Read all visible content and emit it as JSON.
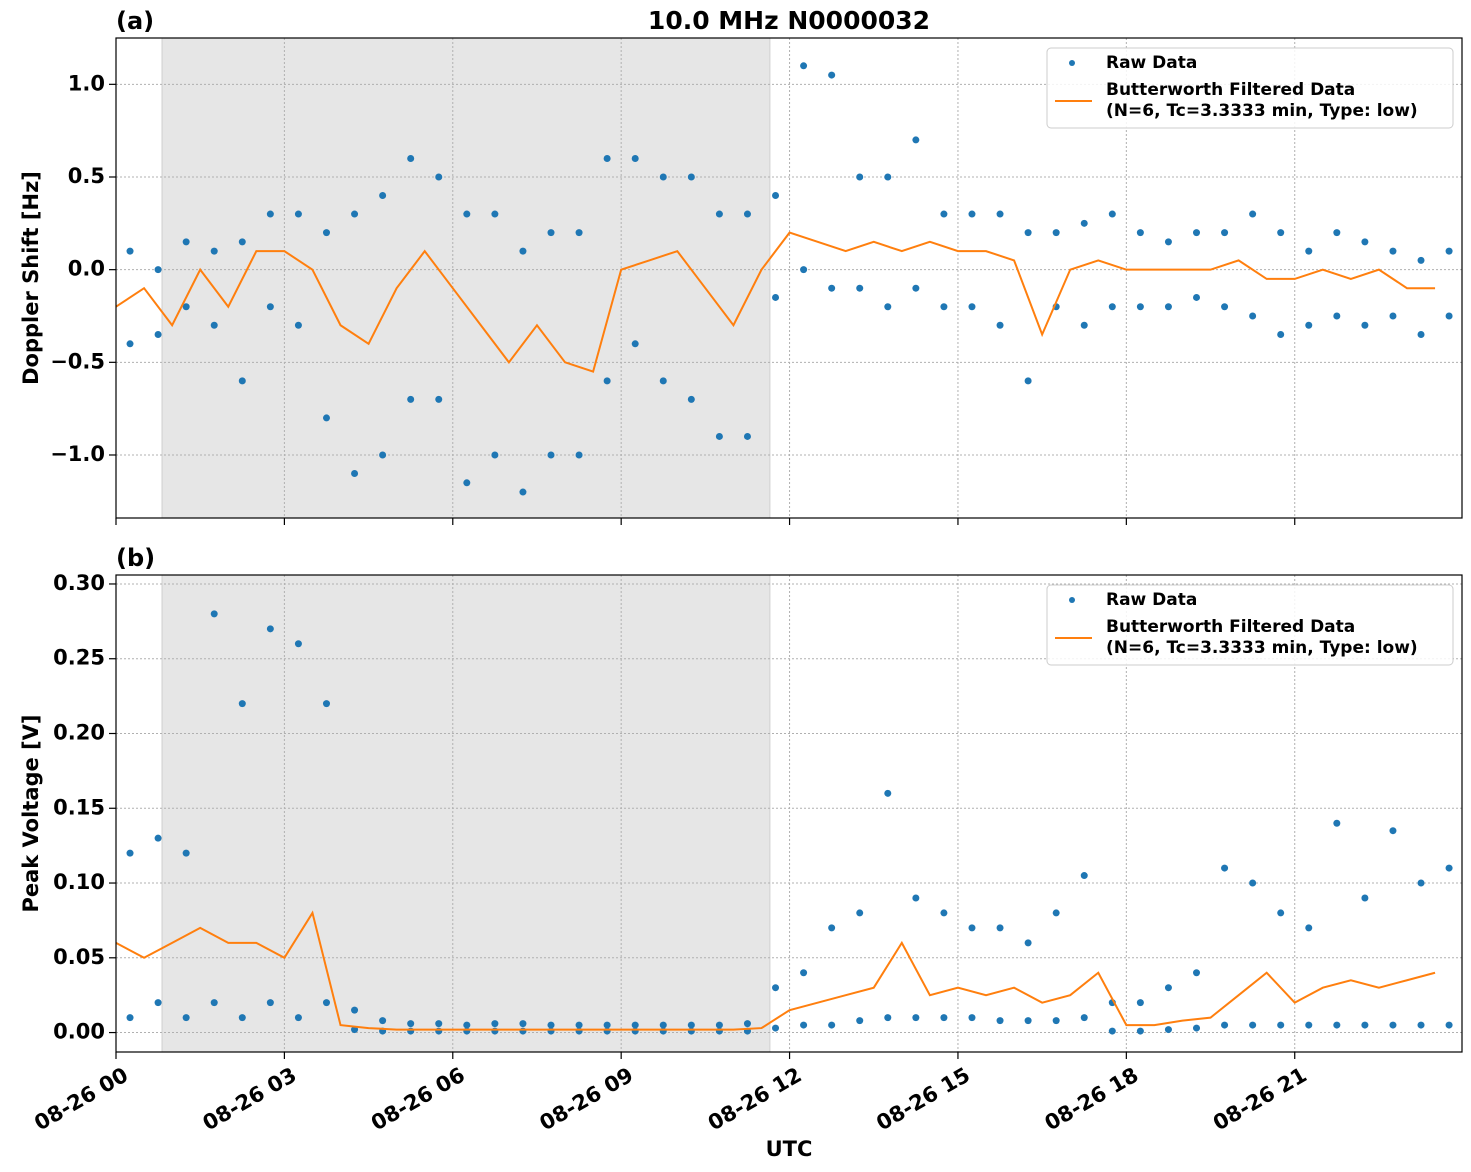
{
  "chart_data": [
    {
      "type": "line",
      "panel_label": "(a)",
      "title": "10.0 MHz N0000032",
      "ylabel": "Doppler Shift [Hz]",
      "xlim": [
        0,
        23.98
      ],
      "ylim": [
        -1.34,
        1.25
      ],
      "xticks": [
        0,
        3,
        6,
        9,
        12,
        15,
        18,
        21
      ],
      "show_xtick_labels": false,
      "yticks": [
        {
          "value": -1.0,
          "label": "−1.0"
        },
        {
          "value": -0.5,
          "label": "−0.5"
        },
        {
          "value": 0.0,
          "label": "0.0"
        },
        {
          "value": 0.5,
          "label": "0.5"
        },
        {
          "value": 1.0,
          "label": "1.0"
        }
      ],
      "grid": true,
      "legend": "upper right",
      "shaded_span": [
        0.82,
        11.65
      ],
      "series": [
        {
          "name": "Raw Data",
          "style": "markers",
          "color": "#1f77b4",
          "x": [
            0.25,
            0.25,
            0.75,
            0.75,
            1.25,
            1.25,
            1.75,
            1.75,
            2.25,
            2.25,
            2.75,
            2.75,
            3.25,
            3.25,
            3.75,
            3.75,
            4.25,
            4.25,
            4.75,
            4.75,
            5.25,
            5.25,
            5.75,
            5.75,
            6.25,
            6.25,
            6.75,
            6.75,
            7.25,
            7.25,
            7.75,
            7.75,
            8.25,
            8.25,
            8.75,
            8.75,
            9.25,
            9.25,
            9.75,
            9.75,
            10.25,
            10.25,
            10.75,
            10.75,
            11.25,
            11.25,
            11.75,
            11.75,
            12.25,
            12.25,
            12.75,
            12.75,
            13.25,
            13.25,
            13.75,
            13.75,
            14.25,
            14.25,
            14.75,
            14.75,
            15.25,
            15.25,
            15.75,
            15.75,
            16.25,
            16.25,
            16.75,
            16.75,
            17.25,
            17.25,
            17.75,
            17.75,
            18.25,
            18.25,
            18.75,
            18.75,
            19.25,
            19.25,
            19.75,
            19.75,
            20.25,
            20.25,
            20.75,
            20.75,
            21.25,
            21.25,
            21.75,
            21.75,
            22.25,
            22.25,
            22.75,
            22.75,
            23.25,
            23.25,
            23.75,
            23.75
          ],
          "values": [
            0.1,
            -0.4,
            0.0,
            -0.35,
            0.15,
            -0.2,
            0.1,
            -0.3,
            0.15,
            -0.6,
            0.3,
            -0.2,
            0.3,
            -0.3,
            0.2,
            -0.8,
            0.3,
            -1.1,
            0.4,
            -1.0,
            0.6,
            -0.7,
            0.5,
            -0.7,
            0.3,
            -1.15,
            0.3,
            -1.0,
            0.1,
            -1.2,
            0.2,
            -1.0,
            0.2,
            -1.0,
            0.6,
            -0.6,
            0.6,
            -0.4,
            0.5,
            -0.6,
            0.5,
            -0.7,
            0.3,
            -0.9,
            0.3,
            -0.9,
            0.4,
            -0.15,
            1.1,
            0.0,
            1.05,
            -0.1,
            0.5,
            -0.1,
            0.5,
            -0.2,
            0.7,
            -0.1,
            0.3,
            -0.2,
            0.3,
            -0.2,
            0.3,
            -0.3,
            0.2,
            -0.6,
            0.2,
            -0.2,
            0.25,
            -0.3,
            0.3,
            -0.2,
            0.2,
            -0.2,
            0.15,
            -0.2,
            0.2,
            -0.15,
            0.2,
            -0.2,
            0.3,
            -0.25,
            0.2,
            -0.35,
            0.1,
            -0.3,
            0.2,
            -0.25,
            0.15,
            -0.3,
            0.1,
            -0.25,
            0.05,
            -0.35,
            0.1,
            -0.25
          ]
        },
        {
          "name": "Butterworth Filtered Data\n(N=6, Tc=3.3333 min, Type: low)",
          "style": "line",
          "color": "#ff7f0e",
          "x": [
            0,
            0.5,
            1,
            1.5,
            2,
            2.5,
            3,
            3.5,
            4,
            4.5,
            5,
            5.5,
            6,
            6.5,
            7,
            7.5,
            8,
            8.5,
            9,
            9.5,
            10,
            10.5,
            11,
            11.5,
            12,
            12.5,
            13,
            13.5,
            14,
            14.5,
            15,
            15.5,
            16,
            16.5,
            17,
            17.5,
            18,
            18.5,
            19,
            19.5,
            20,
            20.5,
            21,
            21.5,
            22,
            22.5,
            23,
            23.5
          ],
          "values": [
            -0.2,
            -0.1,
            -0.3,
            0.0,
            -0.2,
            0.1,
            0.1,
            0.0,
            -0.3,
            -0.4,
            -0.1,
            0.1,
            -0.1,
            -0.3,
            -0.5,
            -0.3,
            -0.5,
            -0.55,
            0.0,
            0.05,
            0.1,
            -0.1,
            -0.3,
            0.0,
            0.2,
            0.15,
            0.1,
            0.15,
            0.1,
            0.15,
            0.1,
            0.1,
            0.05,
            -0.35,
            0.0,
            0.05,
            0.0,
            0.0,
            0.0,
            0.0,
            0.05,
            -0.05,
            -0.05,
            0.0,
            -0.05,
            0.0,
            -0.1,
            -0.1
          ]
        }
      ]
    },
    {
      "type": "line",
      "panel_label": "(b)",
      "ylabel": "Peak Voltage [V]",
      "xlabel": "UTC",
      "xlim": [
        0,
        23.98
      ],
      "ylim": [
        -0.013,
        0.306
      ],
      "xticks": [
        {
          "value": 0,
          "label": "08-26 00"
        },
        {
          "value": 3,
          "label": "08-26 03"
        },
        {
          "value": 6,
          "label": "08-26 06"
        },
        {
          "value": 9,
          "label": "08-26 09"
        },
        {
          "value": 12,
          "label": "08-26 12"
        },
        {
          "value": 15,
          "label": "08-26 15"
        },
        {
          "value": 18,
          "label": "08-26 18"
        },
        {
          "value": 21,
          "label": "08-26 21"
        }
      ],
      "show_xtick_labels": true,
      "yticks": [
        {
          "value": 0.0,
          "label": "0.00"
        },
        {
          "value": 0.05,
          "label": "0.05"
        },
        {
          "value": 0.1,
          "label": "0.10"
        },
        {
          "value": 0.15,
          "label": "0.15"
        },
        {
          "value": 0.2,
          "label": "0.20"
        },
        {
          "value": 0.25,
          "label": "0.25"
        },
        {
          "value": 0.3,
          "label": "0.30"
        }
      ],
      "grid": true,
      "legend": "upper right",
      "shaded_span": [
        0.82,
        11.65
      ],
      "series": [
        {
          "name": "Raw Data",
          "style": "markers",
          "color": "#1f77b4",
          "x": [
            0.25,
            0.25,
            0.75,
            0.75,
            1.25,
            1.25,
            1.75,
            1.75,
            2.25,
            2.25,
            2.75,
            2.75,
            3.25,
            3.25,
            3.75,
            3.75,
            4.25,
            4.25,
            4.75,
            4.75,
            5.25,
            5.25,
            5.75,
            5.75,
            6.25,
            6.25,
            6.75,
            6.75,
            7.25,
            7.25,
            7.75,
            7.75,
            8.25,
            8.25,
            8.75,
            8.75,
            9.25,
            9.25,
            9.75,
            9.75,
            10.25,
            10.25,
            10.75,
            10.75,
            11.25,
            11.25,
            11.75,
            11.75,
            12.25,
            12.25,
            12.75,
            12.75,
            13.25,
            13.25,
            13.75,
            13.75,
            14.25,
            14.25,
            14.75,
            14.75,
            15.25,
            15.25,
            15.75,
            15.75,
            16.25,
            16.25,
            16.75,
            16.75,
            17.25,
            17.25,
            17.75,
            17.75,
            18.25,
            18.25,
            18.75,
            18.75,
            19.25,
            19.25,
            19.75,
            19.75,
            20.25,
            20.25,
            20.75,
            20.75,
            21.25,
            21.25,
            21.75,
            21.75,
            22.25,
            22.25,
            22.75,
            22.75,
            23.25,
            23.25,
            23.75,
            23.75
          ],
          "values": [
            0.12,
            0.01,
            0.13,
            0.02,
            0.12,
            0.01,
            0.28,
            0.02,
            0.22,
            0.01,
            0.27,
            0.02,
            0.26,
            0.01,
            0.22,
            0.02,
            0.015,
            0.002,
            0.008,
            0.001,
            0.006,
            0.001,
            0.006,
            0.001,
            0.005,
            0.001,
            0.006,
            0.001,
            0.006,
            0.001,
            0.005,
            0.001,
            0.005,
            0.001,
            0.005,
            0.001,
            0.005,
            0.001,
            0.005,
            0.001,
            0.005,
            0.001,
            0.005,
            0.001,
            0.006,
            0.001,
            0.03,
            0.003,
            0.04,
            0.005,
            0.07,
            0.005,
            0.08,
            0.008,
            0.16,
            0.01,
            0.09,
            0.01,
            0.08,
            0.01,
            0.07,
            0.01,
            0.07,
            0.008,
            0.06,
            0.008,
            0.08,
            0.008,
            0.105,
            0.01,
            0.02,
            0.001,
            0.02,
            0.001,
            0.03,
            0.002,
            0.04,
            0.003,
            0.11,
            0.005,
            0.1,
            0.005,
            0.08,
            0.005,
            0.07,
            0.005,
            0.14,
            0.005,
            0.09,
            0.005,
            0.135,
            0.005,
            0.1,
            0.005,
            0.11,
            0.005
          ]
        },
        {
          "name": "Butterworth Filtered Data\n(N=6, Tc=3.3333 min, Type: low)",
          "style": "line",
          "color": "#ff7f0e",
          "x": [
            0,
            0.5,
            1,
            1.5,
            2,
            2.5,
            3,
            3.5,
            4,
            4.5,
            5,
            5.5,
            6,
            6.5,
            7,
            7.5,
            8,
            8.5,
            9,
            9.5,
            10,
            10.5,
            11,
            11.5,
            12,
            12.5,
            13,
            13.5,
            14,
            14.5,
            15,
            15.5,
            16,
            16.5,
            17,
            17.5,
            18,
            18.5,
            19,
            19.5,
            20,
            20.5,
            21,
            21.5,
            22,
            22.5,
            23,
            23.5
          ],
          "values": [
            0.06,
            0.05,
            0.06,
            0.07,
            0.06,
            0.06,
            0.05,
            0.08,
            0.005,
            0.003,
            0.002,
            0.002,
            0.002,
            0.002,
            0.002,
            0.002,
            0.002,
            0.002,
            0.002,
            0.002,
            0.002,
            0.002,
            0.002,
            0.003,
            0.015,
            0.02,
            0.025,
            0.03,
            0.06,
            0.025,
            0.03,
            0.025,
            0.03,
            0.02,
            0.025,
            0.04,
            0.005,
            0.005,
            0.008,
            0.01,
            0.025,
            0.04,
            0.02,
            0.03,
            0.035,
            0.03,
            0.035,
            0.04
          ]
        }
      ]
    }
  ]
}
